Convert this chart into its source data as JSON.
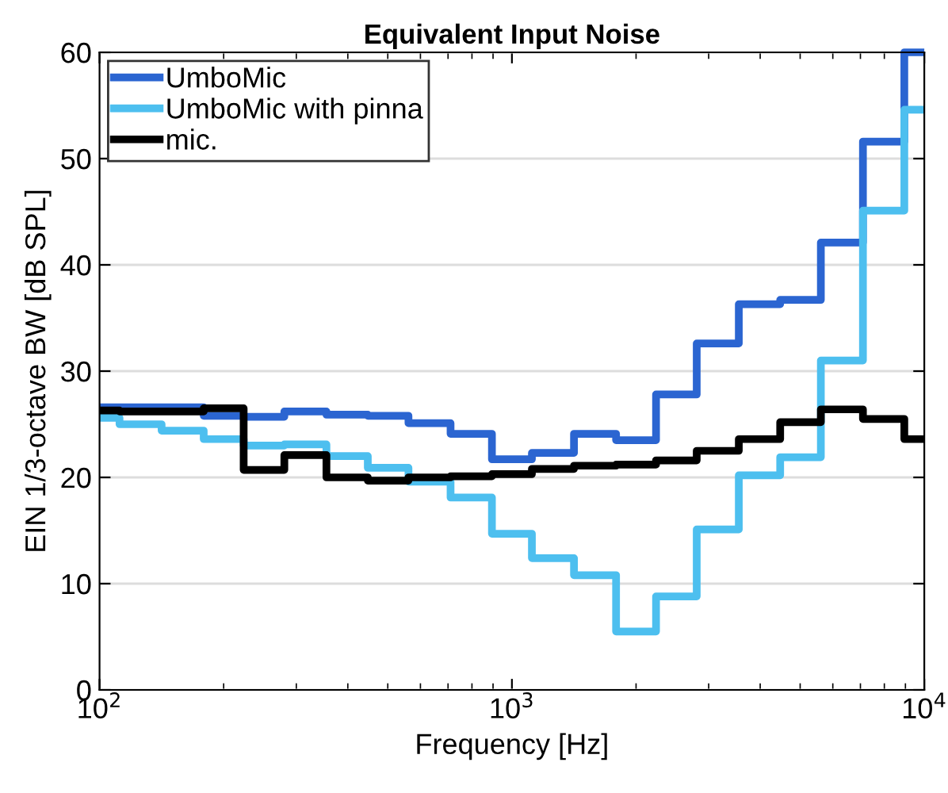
{
  "chart_data": {
    "type": "step",
    "title": "Equivalent Input Noise",
    "xlabel": "Frequency [Hz]",
    "ylabel": "EIN 1/3-octave BW [dB SPL]",
    "x": [
      100,
      125,
      160,
      200,
      250,
      315,
      400,
      500,
      630,
      800,
      1000,
      1250,
      1600,
      2000,
      2500,
      3150,
      4000,
      5000,
      6300,
      8000,
      10000
    ],
    "series": [
      {
        "name": "UmboMic",
        "color": "#2b65d1",
        "values": [
          26.6,
          26.6,
          26.6,
          25.8,
          25.7,
          26.2,
          25.9,
          25.8,
          25.1,
          24.1,
          21.7,
          22.3,
          24.1,
          23.5,
          27.8,
          32.6,
          36.3,
          36.7,
          42.1,
          51.6,
          60
        ]
      },
      {
        "name": "UmboMic with pinna",
        "color": "#4dbfef",
        "values": [
          25.6,
          25.0,
          24.4,
          23.6,
          23.0,
          23.1,
          22.0,
          20.9,
          19.6,
          18.1,
          14.7,
          12.4,
          10.8,
          5.5,
          8.8,
          15.1,
          20.2,
          21.9,
          31.0,
          45.1,
          54.6
        ]
      },
      {
        "name": "mic.",
        "color": "#000000",
        "values": [
          26.3,
          26.2,
          26.2,
          26.5,
          20.7,
          22.1,
          20.0,
          19.7,
          20.0,
          20.1,
          20.3,
          20.8,
          21.1,
          21.2,
          21.6,
          22.5,
          23.6,
          25.2,
          26.4,
          25.5,
          23.6
        ]
      }
    ],
    "log": "x",
    "xlim": [
      100,
      10000
    ],
    "xticks": [
      {
        "value": 100,
        "label": "10$^{2}$"
      },
      {
        "value": 1000,
        "label": "10$^{3}$"
      },
      {
        "value": 10000,
        "label": "10$^{4}$"
      }
    ],
    "ylim": [
      0,
      60
    ],
    "yticks": [
      0,
      10,
      20,
      30,
      40,
      50,
      60
    ],
    "grid": "y",
    "legend": "top left"
  }
}
